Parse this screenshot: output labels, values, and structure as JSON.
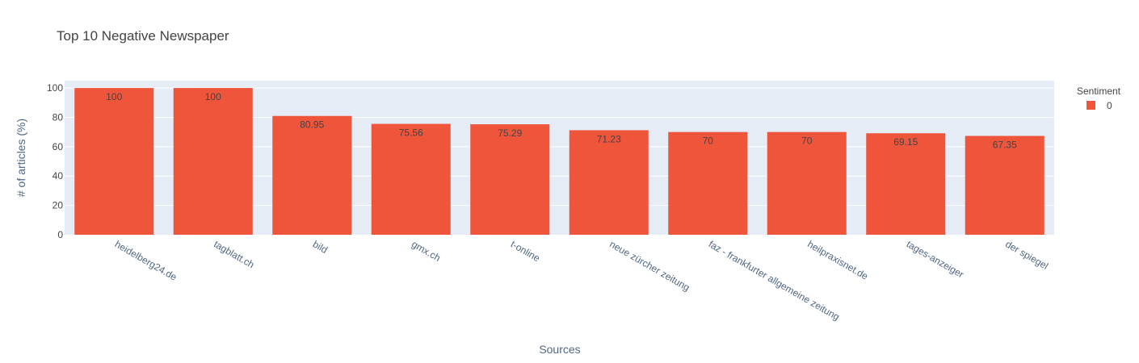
{
  "chart_data": {
    "type": "bar",
    "title": "Top 10 Negative Newspaper",
    "xlabel": "Sources",
    "ylabel": "# of articles (%)",
    "ylim": [
      0,
      105
    ],
    "yticks": [
      0,
      20,
      40,
      60,
      80,
      100
    ],
    "grid": true,
    "legend_position": "top-right",
    "legend_title": "Sentiment",
    "categories": [
      "heidelberg24.de",
      "tagblatt.ch",
      "bild",
      "gmx.ch",
      "t-online",
      "neue zürcher zeitung",
      "faz - frankfurter allgemeine zeitung",
      "heilpraxisnet.de",
      "tages-anzeiger",
      "der spiegel"
    ],
    "series": [
      {
        "name": "0",
        "color": "#EF553B",
        "values": [
          100,
          100,
          80.95,
          75.56,
          75.29,
          71.23,
          70,
          70,
          69.15,
          67.35
        ],
        "labels": [
          "100",
          "100",
          "80.95",
          "75.56",
          "75.29",
          "71.23",
          "70",
          "70",
          "69.15",
          "67.35"
        ]
      }
    ],
    "plot_bgcolor": "#E5ECF6",
    "gridcolor": "#ffffff"
  }
}
